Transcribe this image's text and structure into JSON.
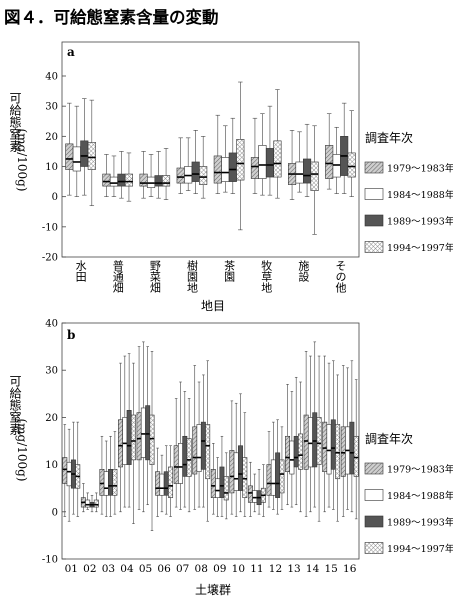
{
  "figure_title": "図４．可給態窒素含量の変動",
  "legend": {
    "title": "調査年次",
    "periods": [
      "1979～1983年",
      "1984～1988年",
      "1989～1993年",
      "1994～1997年"
    ]
  },
  "chart_data": [
    {
      "type": "box",
      "panel": "a",
      "xlabel": "地目",
      "ylabel_kanji": "可給態窒素",
      "ylabel_unit": "(mg/100g)",
      "ylim": [
        -20,
        40
      ],
      "yticks": [
        -20,
        -10,
        0,
        10,
        20,
        30,
        40
      ],
      "categories": [
        "水田",
        "普通畑",
        "野菜畑",
        "樹園地",
        "茶園",
        "牧草地",
        "施設",
        "その他"
      ],
      "series_names": [
        "1979～1983年",
        "1984～1988年",
        "1989～1993年",
        "1994～1997年"
      ],
      "boxes": [
        [
          [
            0.5,
            9,
            12.5,
            17.5,
            31
          ],
          [
            0,
            8.5,
            11.5,
            16.5,
            30
          ],
          [
            0.5,
            10,
            13.5,
            18.5,
            32.5
          ],
          [
            -3,
            9,
            13,
            18,
            32
          ]
        ],
        [
          [
            0,
            3.5,
            5,
            7.5,
            14
          ],
          [
            0,
            3.5,
            4.5,
            6.5,
            13.5
          ],
          [
            -0.5,
            3.5,
            5,
            7.5,
            15
          ],
          [
            -1.5,
            3.5,
            5,
            7.5,
            14.5
          ]
        ],
        [
          [
            -0.5,
            3.5,
            4.5,
            7.5,
            15
          ],
          [
            0,
            3,
            4.5,
            6.5,
            14
          ],
          [
            -0.5,
            3.5,
            4.5,
            7,
            15
          ],
          [
            -1,
            3.5,
            4.5,
            7,
            16
          ]
        ],
        [
          [
            1,
            4.5,
            6.5,
            9.5,
            19.5
          ],
          [
            2,
            4.5,
            7,
            10,
            19.5
          ],
          [
            1,
            5,
            7.5,
            11.5,
            22
          ],
          [
            -0.5,
            4,
            6.5,
            10,
            20
          ]
        ],
        [
          [
            1,
            4.5,
            8,
            13.5,
            27
          ],
          [
            1.5,
            5,
            8,
            13,
            23.5
          ],
          [
            1,
            5,
            9,
            14.5,
            26
          ],
          [
            -11,
            5.5,
            11,
            19,
            38
          ]
        ],
        [
          [
            1,
            6,
            10,
            13,
            26
          ],
          [
            0.5,
            6,
            10.5,
            17,
            27.5
          ],
          [
            0.5,
            6.5,
            10.5,
            16,
            30
          ],
          [
            -0.5,
            6.5,
            11,
            18.5,
            35.5
          ]
        ],
        [
          [
            -1,
            4,
            7.5,
            11,
            22
          ],
          [
            1.5,
            4.5,
            7.5,
            11.5,
            21.5
          ],
          [
            0,
            4.5,
            7,
            12.5,
            24
          ],
          [
            -12.5,
            2,
            7.5,
            11.5,
            23.5
          ]
        ],
        [
          [
            2.5,
            6,
            11,
            17,
            27.5
          ],
          [
            1,
            6.5,
            10.5,
            14,
            23
          ],
          [
            1,
            7,
            13.5,
            20,
            31
          ],
          [
            0,
            6.5,
            10,
            14.5,
            28.5
          ]
        ]
      ]
    },
    {
      "type": "box",
      "panel": "b",
      "xlabel": "土壌群",
      "ylabel_kanji": "可給態窒素",
      "ylabel_unit": "(mg/100g)",
      "ylim": [
        -10,
        40
      ],
      "yticks": [
        -10,
        0,
        10,
        20,
        30,
        40
      ],
      "categories": [
        "01",
        "02",
        "03",
        "04",
        "05",
        "06",
        "07",
        "08",
        "09",
        "10",
        "11",
        "12",
        "13",
        "14",
        "15",
        "16"
      ],
      "series_names": [
        "1979～1983年",
        "1984～1988年",
        "1989～1993年",
        "1994～1997年"
      ],
      "boxes": [
        [
          [
            -1,
            6,
            9,
            11.5,
            18.5
          ],
          [
            -2,
            5.5,
            8.5,
            10.5,
            17.5
          ],
          [
            -0.5,
            5,
            8,
            11,
            19
          ],
          [
            -1,
            5,
            7.5,
            10,
            19
          ]
        ],
        [
          [
            0,
            1,
            2,
            3,
            6
          ],
          [
            0.5,
            1,
            1.5,
            2.5,
            4
          ],
          [
            0,
            1,
            1.5,
            2,
            3.5
          ],
          [
            0,
            1,
            1.5,
            2.5,
            4
          ]
        ],
        [
          [
            -0.5,
            3.5,
            6,
            9,
            16
          ],
          [
            -1,
            3.5,
            5,
            8.5,
            15
          ],
          [
            -1,
            3.5,
            5.5,
            9,
            16
          ],
          [
            -0.5,
            3.5,
            5.5,
            9,
            17
          ]
        ],
        [
          [
            0,
            9.5,
            14,
            19.5,
            31.5
          ],
          [
            1,
            10,
            14.5,
            20,
            33
          ],
          [
            1,
            10,
            14,
            21.5,
            33.5
          ],
          [
            -2.5,
            11,
            15,
            20.5,
            31.5
          ]
        ],
        [
          [
            0.5,
            11,
            15.5,
            21,
            35
          ],
          [
            0,
            11.5,
            16.5,
            22,
            36
          ],
          [
            1.5,
            11,
            16.5,
            22.5,
            35
          ],
          [
            -4,
            10,
            15.5,
            20.5,
            34
          ]
        ],
        [
          [
            -1,
            3.5,
            5,
            8.5,
            13.5
          ],
          [
            0,
            3.5,
            5,
            8,
            12
          ],
          [
            -0.5,
            3.5,
            5,
            8.5,
            14
          ],
          [
            -1,
            3,
            5.5,
            9.5,
            14
          ]
        ],
        [
          [
            1,
            6,
            9.5,
            14,
            24
          ],
          [
            0.5,
            6,
            9.5,
            14.5,
            27.5
          ],
          [
            1,
            7.5,
            10,
            16,
            25.5
          ],
          [
            0,
            7.5,
            11,
            15.5,
            24
          ]
        ],
        [
          [
            0.5,
            8,
            11.5,
            18,
            31
          ],
          [
            1,
            8.5,
            11.5,
            18.5,
            27.5
          ],
          [
            1,
            9,
            15,
            19,
            29
          ],
          [
            -2,
            7,
            14,
            18.5,
            32
          ]
        ],
        [
          [
            -0.5,
            3,
            5.5,
            9,
            14.5
          ],
          [
            -1,
            3,
            4.5,
            7,
            11.5
          ],
          [
            -1,
            3,
            5.5,
            9.5,
            16
          ],
          [
            -1.5,
            2.5,
            4,
            7.5,
            12.5
          ]
        ],
        [
          [
            -0.5,
            4,
            7.5,
            13,
            23.5
          ],
          [
            -1,
            4.5,
            7,
            12.5,
            23
          ],
          [
            0,
            4.5,
            8,
            14,
            25
          ],
          [
            -1,
            3,
            7,
            11.5,
            21
          ]
        ],
        [
          [
            -1,
            2,
            4,
            5.5,
            10.5
          ],
          [
            0,
            2,
            3,
            4.5,
            8
          ],
          [
            -0.5,
            1.5,
            3,
            4.5,
            9
          ],
          [
            -1,
            2,
            3.5,
            5,
            10
          ]
        ],
        [
          [
            1,
            3.5,
            6,
            10,
            17
          ],
          [
            0.5,
            3.5,
            6,
            11,
            19
          ],
          [
            -0.5,
            3,
            6,
            12.5,
            19.5
          ],
          [
            0.5,
            4,
            8,
            11,
            18
          ]
        ],
        [
          [
            1.5,
            8.5,
            11.5,
            16,
            27
          ],
          [
            1,
            8,
            11,
            15,
            25.5
          ],
          [
            1.5,
            9.5,
            11.5,
            16,
            28.5
          ],
          [
            0,
            9,
            12,
            16.5,
            27.5
          ]
        ],
        [
          [
            -1,
            9,
            15,
            20.5,
            34
          ],
          [
            0,
            9.5,
            14.5,
            20,
            33
          ],
          [
            1,
            9.5,
            15,
            21,
            36
          ],
          [
            -2,
            10,
            14.5,
            20,
            33
          ]
        ],
        [
          [
            0,
            8.5,
            13.5,
            19,
            33
          ],
          [
            1,
            8,
            13,
            18.5,
            31.5
          ],
          [
            0.5,
            9,
            13.5,
            19.5,
            32
          ],
          [
            -2,
            7,
            12.5,
            18.5,
            29
          ]
        ],
        [
          [
            -1,
            7.5,
            12.5,
            18,
            31
          ],
          [
            0.5,
            8,
            13,
            18,
            30.5
          ],
          [
            0,
            8,
            12.5,
            19,
            32
          ],
          [
            -1.5,
            7.5,
            11.5,
            16,
            28
          ]
        ]
      ]
    }
  ]
}
